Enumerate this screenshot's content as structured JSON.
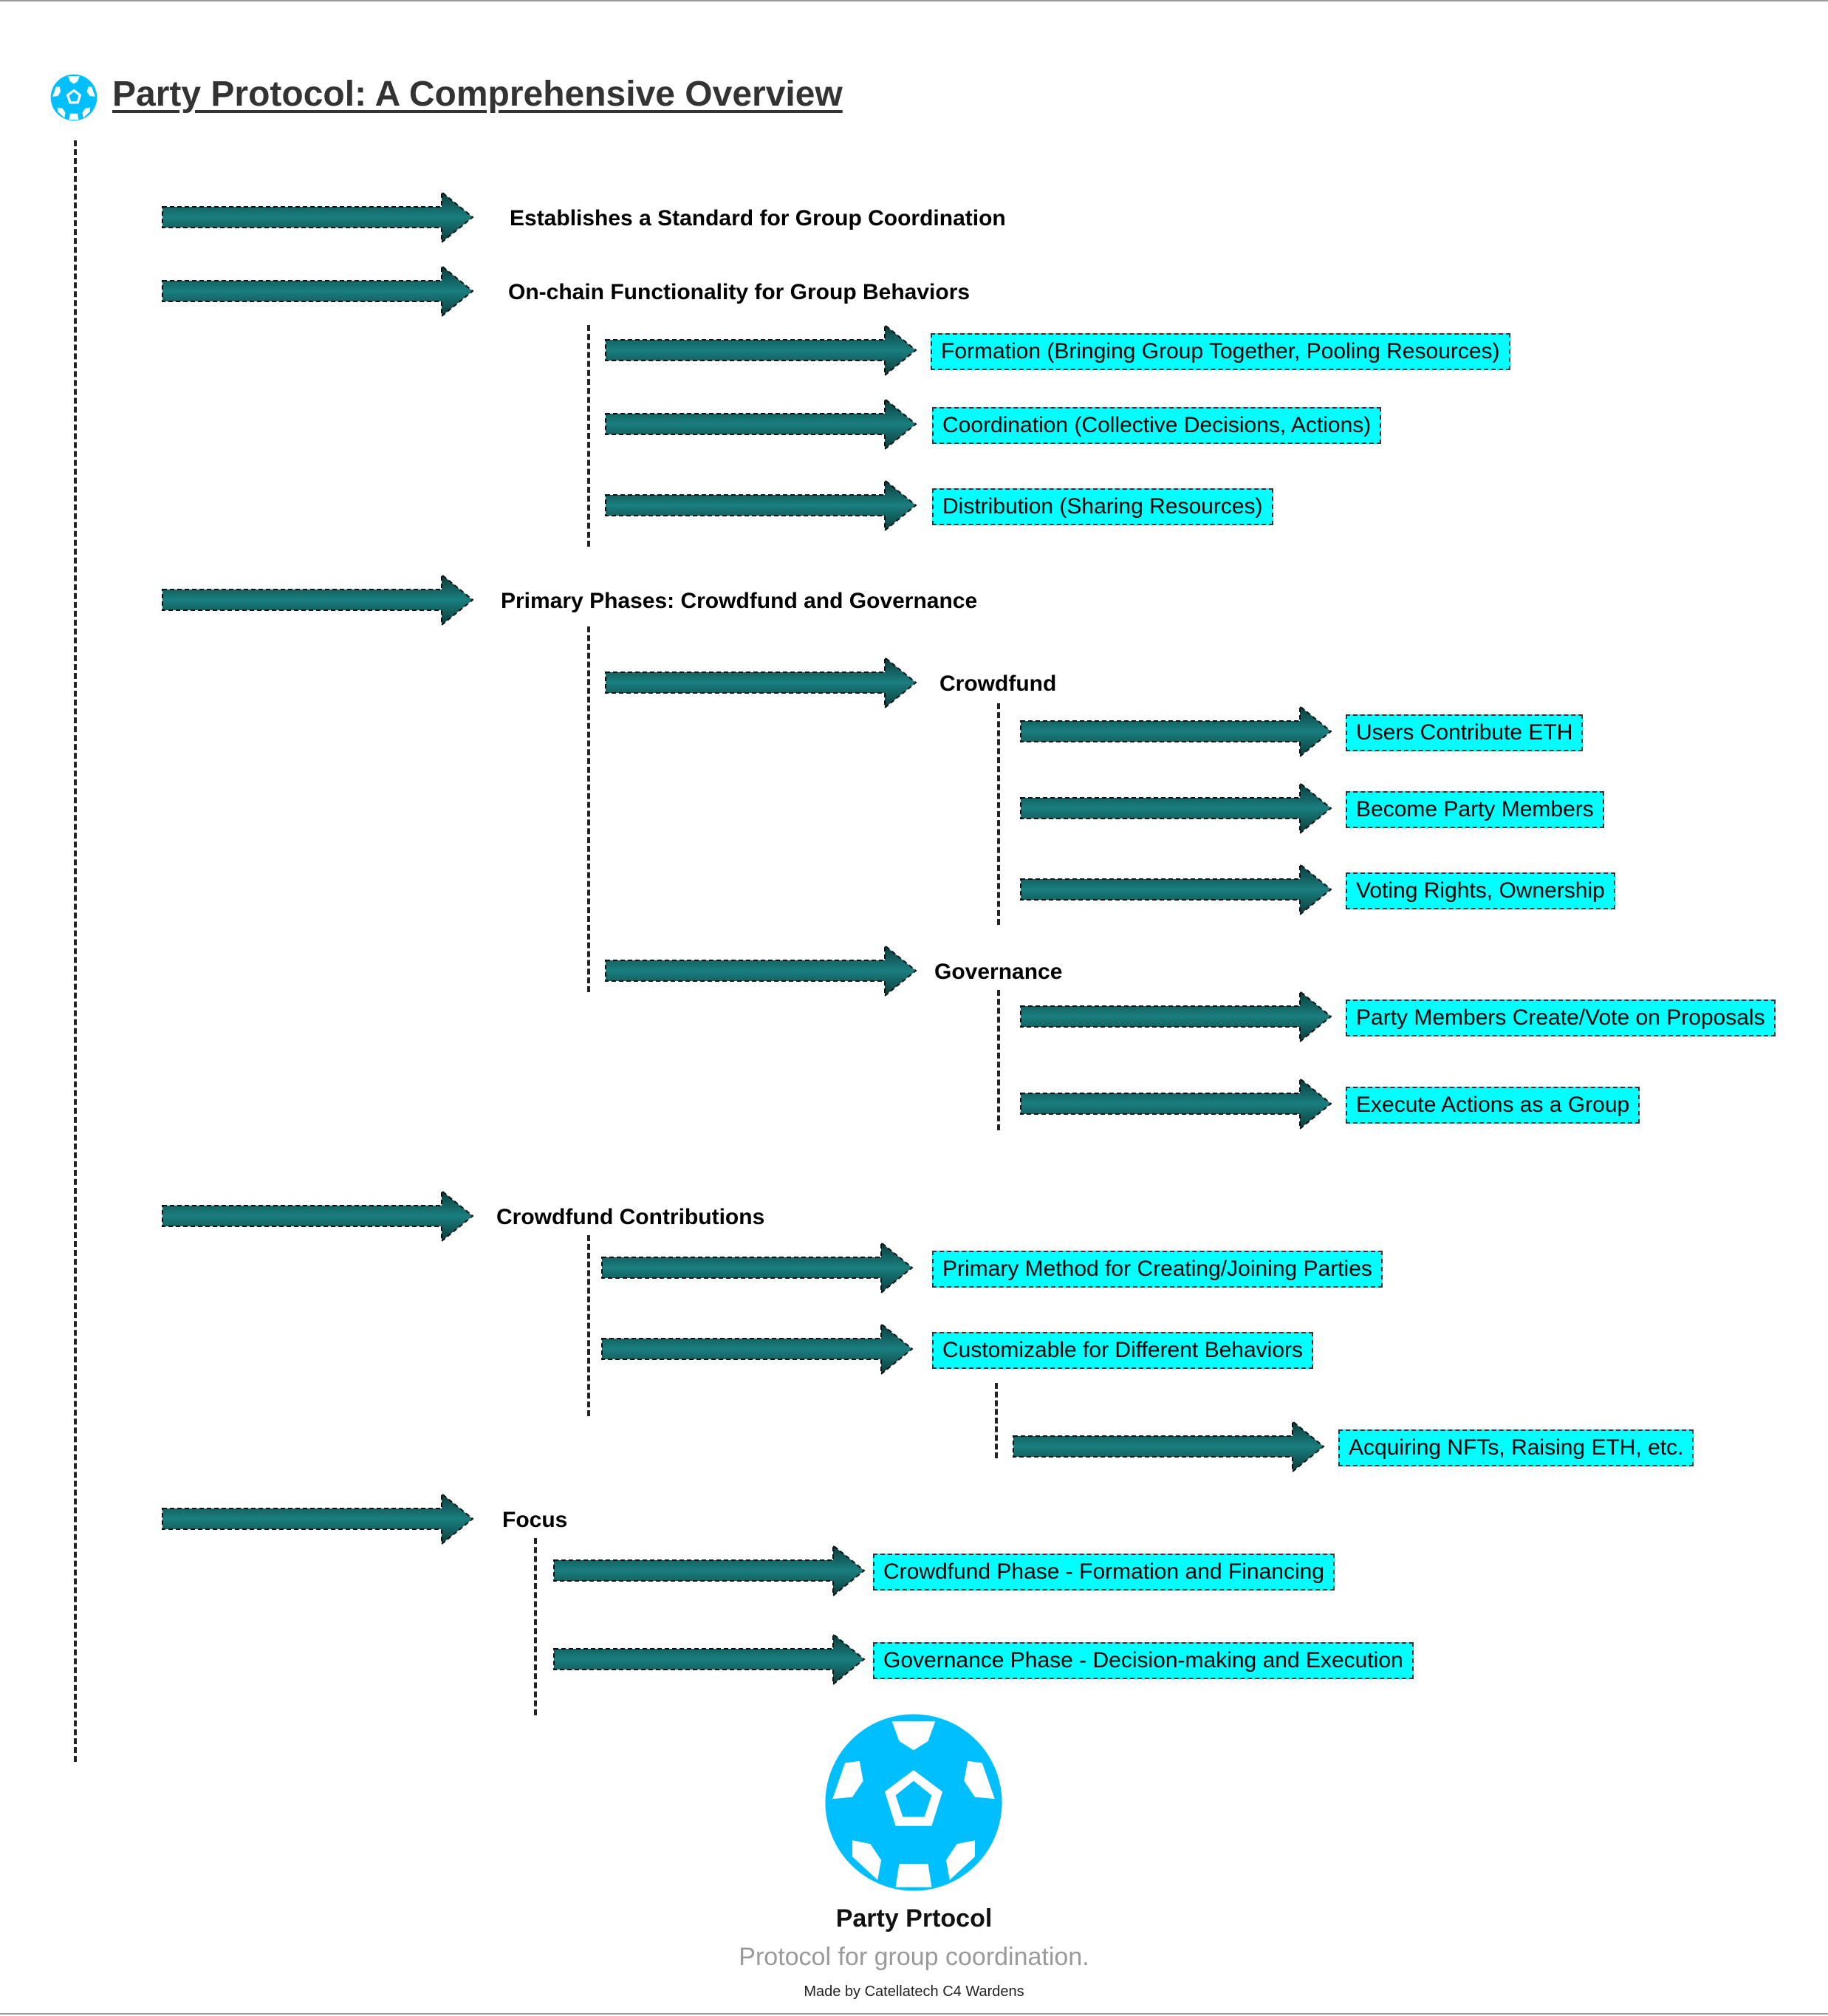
{
  "header": {
    "title": "Party Protocol: A Comprehensive Overview"
  },
  "tree": {
    "n1": {
      "label": "Establishes a Standard for Group Coordination"
    },
    "n2": {
      "label": "On-chain Functionality for Group Behaviors",
      "children": [
        "Formation (Bringing Group Together, Pooling Resources)",
        "Coordination (Collective Decisions, Actions)",
        "Distribution (Sharing Resources)"
      ]
    },
    "n3": {
      "label": "Primary Phases: Crowdfund and Governance",
      "crowdfund": {
        "label": "Crowdfund",
        "children": [
          "Users Contribute ETH",
          "Become Party Members",
          "Voting Rights, Ownership"
        ]
      },
      "governance": {
        "label": "Governance",
        "children": [
          "Party Members Create/Vote on Proposals",
          "Execute Actions as a Group"
        ]
      }
    },
    "n4": {
      "label": "Crowdfund Contributions",
      "children": [
        "Primary Method for Creating/Joining Parties",
        "Customizable for Different Behaviors"
      ],
      "grandchild": "Acquiring NFTs, Raising ETH, etc."
    },
    "n5": {
      "label": "Focus",
      "children": [
        "Crowdfund Phase - Formation and Financing",
        "Governance Phase - Decision-making and Execution"
      ]
    }
  },
  "footer": {
    "name": "Party Prtocol",
    "tagline": "Protocol for group coordination.",
    "credit": "Made by Catellatech C4 Wardens"
  },
  "colors": {
    "box_fill": "#00ffff",
    "arrow_dark": "#0b3a3a",
    "arrow_mid": "#1a7f7f",
    "logo": "#00bfff"
  }
}
